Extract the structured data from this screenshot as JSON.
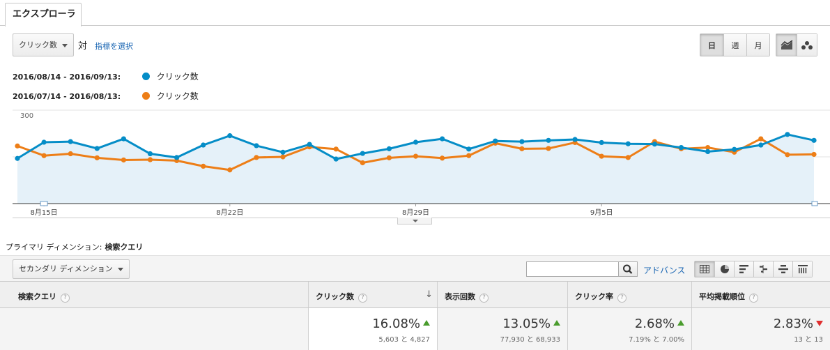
{
  "tab": {
    "label": "エクスプローラ"
  },
  "toolbar": {
    "metric": "クリック数",
    "vs": "対",
    "select_metric": "指標を選択",
    "periods": [
      "日",
      "週",
      "月"
    ],
    "active_period": "日"
  },
  "legend": [
    {
      "range": "2016/08/14 - 2016/09/13:",
      "series": "クリック数",
      "color": "#058dc7"
    },
    {
      "range": "2016/07/14 - 2016/08/13:",
      "series": "クリック数",
      "color": "#ed7e17"
    }
  ],
  "chart_data": {
    "type": "line",
    "y_ticks": [
      "300",
      "150"
    ],
    "ylim": [
      0,
      300
    ],
    "x_tick_labels": [
      "8月15日",
      "8月22日",
      "8月29日",
      "9月5日"
    ],
    "x_tick_index": [
      1,
      8,
      15,
      22
    ],
    "grid": true,
    "series": [
      {
        "name": "2016/08/14 - 2016/09/13: クリック数",
        "color": "#058dc7",
        "area": true,
        "values": [
          145,
          197,
          199,
          177,
          208,
          160,
          148,
          188,
          218,
          186,
          165,
          190,
          143,
          161,
          176,
          197,
          208,
          175,
          201,
          199,
          203,
          206,
          196,
          192,
          191,
          180,
          167,
          174,
          188,
          222,
          203
        ]
      },
      {
        "name": "2016/07/14 - 2016/08/13: クリック数",
        "color": "#ed7e17",
        "area": false,
        "values": [
          185,
          154,
          160,
          147,
          140,
          141,
          138,
          120,
          108,
          148,
          150,
          182,
          175,
          131,
          147,
          152,
          146,
          154,
          194,
          176,
          177,
          196,
          152,
          148,
          199,
          176,
          180,
          165,
          208,
          157,
          158
        ]
      }
    ]
  },
  "primary_dimension": {
    "label": "プライマリ ディメンション:",
    "value": "検索クエリ"
  },
  "secondary_dimension": {
    "label": "セカンダリ ディメンション"
  },
  "search": {
    "placeholder": ""
  },
  "advanced_label": "アドバンス",
  "table": {
    "headers": [
      "検索クエリ",
      "クリック数",
      "表示回数",
      "クリック率",
      "平均掲載順位"
    ],
    "summary": [
      {
        "change": "16.08%",
        "detail": "5,603 と 4,827",
        "trend": "up"
      },
      {
        "change": "13.05%",
        "detail": "77,930 と 68,933",
        "trend": "up"
      },
      {
        "change": "2.68%",
        "detail": "7.19% と 7.00%",
        "trend": "up"
      },
      {
        "change": "2.83%",
        "detail": "13 と 13",
        "trend": "down"
      }
    ]
  }
}
